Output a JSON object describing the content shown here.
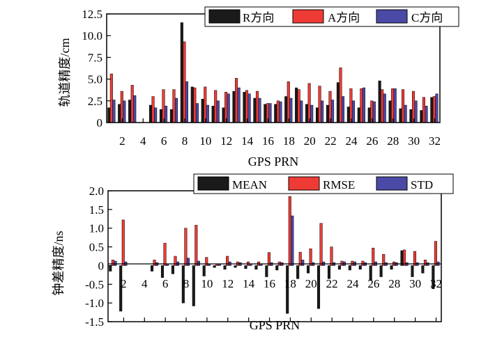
{
  "colors": {
    "black": "#1a1a1a",
    "red": "#ef3b36",
    "blue": "#4a4aa6"
  },
  "chart_data": [
    {
      "type": "bar",
      "title": "",
      "xlabel": "GPS PRN",
      "ylabel": "轨道精度/cm",
      "ylim": [
        0,
        12.5
      ],
      "yticks": [
        "0",
        "2.5",
        "5.0",
        "7.5",
        "10.0",
        "12.5"
      ],
      "categories": [
        1,
        2,
        3,
        4,
        5,
        6,
        7,
        8,
        9,
        10,
        11,
        12,
        13,
        14,
        15,
        16,
        17,
        18,
        19,
        20,
        21,
        22,
        23,
        24,
        25,
        26,
        27,
        28,
        29,
        30,
        31,
        32
      ],
      "xticks": [
        "2",
        "4",
        "6",
        "8",
        "10",
        "12",
        "14",
        "16",
        "18",
        "20",
        "22",
        "24",
        "26",
        "28",
        "30",
        "32"
      ],
      "legend": [
        "R方向",
        "A方向",
        "C方向"
      ],
      "series": [
        {
          "name": "R方向",
          "color": "black",
          "values": [
            1.7,
            2.1,
            2.6,
            null,
            2.0,
            1.5,
            1.5,
            11.5,
            4.1,
            2.7,
            1.9,
            1.7,
            3.6,
            3.5,
            2.8,
            2.1,
            2.1,
            3.0,
            4.0,
            2.1,
            1.7,
            2.0,
            4.6,
            1.8,
            1.7,
            1.7,
            4.8,
            2.5,
            1.6,
            1.5,
            1.4,
            2.9
          ]
        },
        {
          "name": "A方向",
          "color": "red",
          "values": [
            5.6,
            3.6,
            4.3,
            null,
            3.0,
            3.8,
            3.8,
            9.3,
            4.0,
            4.1,
            3.7,
            3.5,
            5.1,
            3.7,
            3.6,
            2.2,
            2.5,
            4.7,
            3.8,
            4.5,
            4.2,
            3.6,
            6.3,
            3.9,
            3.9,
            2.5,
            3.8,
            3.9,
            3.8,
            3.6,
            2.9,
            3.0
          ]
        },
        {
          "name": "C方向",
          "color": "blue",
          "values": [
            2.6,
            2.5,
            3.1,
            null,
            1.7,
            1.9,
            2.8,
            4.7,
            2.2,
            2.0,
            2.5,
            3.3,
            4.0,
            3.3,
            2.8,
            2.2,
            2.4,
            2.8,
            2.5,
            2.0,
            2.5,
            2.6,
            3.0,
            2.5,
            4.0,
            2.4,
            3.3,
            3.9,
            2.0,
            2.5,
            1.9,
            3.3
          ]
        }
      ]
    },
    {
      "type": "bar",
      "title": "",
      "xlabel": "GPS PRN",
      "ylabel": "钟差精度/ns",
      "ylim": [
        -1.5,
        2.0
      ],
      "yticks": [
        "-1.5",
        "-1.0",
        "-0.5",
        "0",
        "0.5",
        "1.0",
        "1.5",
        "2.0"
      ],
      "categories": [
        1,
        2,
        3,
        4,
        5,
        6,
        7,
        8,
        9,
        10,
        11,
        12,
        13,
        14,
        15,
        16,
        17,
        18,
        19,
        20,
        21,
        22,
        23,
        24,
        25,
        26,
        27,
        28,
        29,
        30,
        31,
        32
      ],
      "xticks": [
        "2",
        "4",
        "6",
        "8",
        "10",
        "12",
        "14",
        "16",
        "18",
        "20",
        "22",
        "24",
        "26",
        "28",
        "30",
        "32"
      ],
      "legend": [
        "MEAN",
        "RMSE",
        "STD"
      ],
      "series": [
        {
          "name": "MEAN",
          "color": "black",
          "values": [
            -0.15,
            -1.22,
            null,
            null,
            -0.15,
            -0.32,
            -0.22,
            -1.0,
            -1.08,
            -0.28,
            -0.05,
            -0.1,
            -0.05,
            -0.08,
            -0.1,
            -0.3,
            -0.12,
            -1.28,
            -0.35,
            -0.2,
            -1.15,
            -0.35,
            -0.1,
            -0.12,
            -0.1,
            -0.4,
            -0.3,
            -0.1,
            0.4,
            -0.3,
            -0.2,
            -0.62
          ]
        },
        {
          "name": "RMSE",
          "color": "red",
          "values": [
            0.15,
            1.22,
            null,
            null,
            0.15,
            0.6,
            0.25,
            1.0,
            1.08,
            0.22,
            0.05,
            0.25,
            0.1,
            0.1,
            0.1,
            0.35,
            0.1,
            1.85,
            0.36,
            0.45,
            1.13,
            0.5,
            0.12,
            0.12,
            0.12,
            0.47,
            0.3,
            0.1,
            0.42,
            0.38,
            0.15,
            0.65
          ]
        },
        {
          "name": "STD",
          "color": "blue",
          "values": [
            0.12,
            0.1,
            null,
            null,
            0.08,
            0.05,
            0.1,
            0.2,
            0.12,
            0.05,
            0.05,
            0.1,
            0.08,
            0.05,
            0.05,
            0.08,
            0.08,
            1.33,
            0.15,
            0.08,
            0.1,
            0.08,
            0.1,
            0.1,
            0.08,
            0.1,
            0.08,
            0.08,
            0.08,
            0.08,
            0.08,
            0.1
          ]
        }
      ]
    }
  ]
}
